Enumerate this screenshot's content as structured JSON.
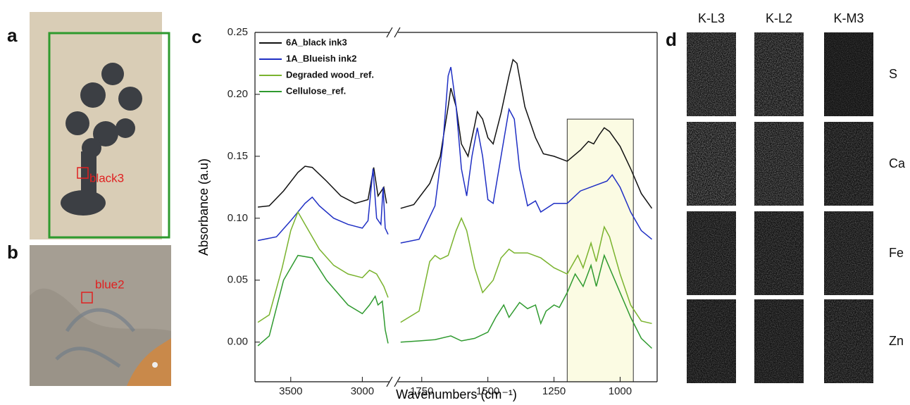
{
  "panels": {
    "a": "a",
    "b": "b",
    "c": "c",
    "d": "d"
  },
  "photo_a": {
    "roi": "black3"
  },
  "photo_b": {
    "roi": "blue2"
  },
  "maps": {
    "columns": [
      "K-L3",
      "K-L2",
      "K-M3"
    ],
    "rows": [
      "S",
      "Ca",
      "Fe",
      "Zn"
    ]
  },
  "chart_data": {
    "type": "line",
    "x_label": "Wavenumbers (cm⁻¹)",
    "y_label": "Absorbance (a.u)",
    "xlim": [
      [
        3750,
        2810
      ],
      [
        1840,
        860
      ]
    ],
    "xticks": [
      3500,
      3000,
      1750,
      1500,
      1250,
      1000
    ],
    "ylim": [
      -0.032,
      0.25
    ],
    "yticks": [
      {
        "value": 0,
        "label": "0.00"
      },
      {
        "value": 0.05,
        "label": "0.05"
      },
      {
        "value": 0.1,
        "label": "0.10"
      },
      {
        "value": 0.15,
        "label": "0.15"
      },
      {
        "value": 0.2,
        "label": "0.20"
      },
      {
        "value": 0.25,
        "label": "0.25"
      }
    ],
    "legend": "upper left",
    "highlight": {
      "x": [
        1200,
        950
      ],
      "y": [
        -0.032,
        0.18
      ],
      "color": "#fbfbe3"
    },
    "series": [
      {
        "name": "6A_black ink3",
        "color": "#111111",
        "x": [
          3730,
          3650,
          3550,
          3450,
          3400,
          3350,
          3250,
          3150,
          3050,
          2960,
          2920,
          2890,
          2850,
          2830,
          1830,
          1780,
          1720,
          1680,
          1650,
          1640,
          1620,
          1600,
          1575,
          1550,
          1540,
          1520,
          1500,
          1480,
          1450,
          1420,
          1405,
          1390,
          1360,
          1320,
          1290,
          1250,
          1200,
          1150,
          1120,
          1100,
          1080,
          1060,
          1040,
          1000,
          960,
          920,
          880
        ],
        "values": [
          0.109,
          0.11,
          0.122,
          0.137,
          0.142,
          0.141,
          0.13,
          0.118,
          0.112,
          0.115,
          0.141,
          0.118,
          0.125,
          0.112,
          0.108,
          0.111,
          0.128,
          0.15,
          0.19,
          0.205,
          0.19,
          0.16,
          0.15,
          0.175,
          0.186,
          0.18,
          0.165,
          0.16,
          0.185,
          0.215,
          0.228,
          0.225,
          0.19,
          0.165,
          0.152,
          0.15,
          0.146,
          0.155,
          0.162,
          0.16,
          0.167,
          0.173,
          0.17,
          0.158,
          0.14,
          0.12,
          0.108
        ]
      },
      {
        "name": "1A_Blueish ink2",
        "color": "#1f2fc4",
        "x": [
          3730,
          3600,
          3500,
          3400,
          3350,
          3300,
          3200,
          3100,
          3000,
          2960,
          2925,
          2900,
          2870,
          2855,
          2840,
          2820,
          1830,
          1760,
          1700,
          1670,
          1650,
          1640,
          1620,
          1600,
          1580,
          1560,
          1540,
          1520,
          1500,
          1480,
          1450,
          1420,
          1400,
          1380,
          1350,
          1320,
          1300,
          1250,
          1200,
          1150,
          1100,
          1050,
          1030,
          1000,
          960,
          920,
          880
        ],
        "values": [
          0.082,
          0.085,
          0.098,
          0.112,
          0.117,
          0.11,
          0.1,
          0.095,
          0.092,
          0.098,
          0.14,
          0.1,
          0.095,
          0.125,
          0.092,
          0.087,
          0.08,
          0.083,
          0.11,
          0.16,
          0.215,
          0.222,
          0.19,
          0.14,
          0.118,
          0.15,
          0.173,
          0.15,
          0.115,
          0.112,
          0.15,
          0.188,
          0.18,
          0.14,
          0.11,
          0.114,
          0.105,
          0.112,
          0.112,
          0.122,
          0.126,
          0.13,
          0.135,
          0.125,
          0.105,
          0.09,
          0.083
        ]
      },
      {
        "name": "Degraded wood_ref.",
        "color": "#7ab32e",
        "x": [
          3730,
          3650,
          3560,
          3500,
          3450,
          3400,
          3300,
          3200,
          3100,
          3000,
          2950,
          2900,
          2850,
          2820,
          1830,
          1760,
          1720,
          1700,
          1680,
          1650,
          1620,
          1600,
          1580,
          1550,
          1520,
          1500,
          1480,
          1450,
          1420,
          1400,
          1350,
          1300,
          1250,
          1200,
          1160,
          1140,
          1110,
          1090,
          1060,
          1040,
          1000,
          960,
          920,
          880
        ],
        "values": [
          0.016,
          0.022,
          0.06,
          0.09,
          0.105,
          0.095,
          0.075,
          0.062,
          0.055,
          0.052,
          0.058,
          0.055,
          0.045,
          0.036,
          0.016,
          0.025,
          0.065,
          0.07,
          0.067,
          0.07,
          0.09,
          0.1,
          0.09,
          0.06,
          0.04,
          0.045,
          0.05,
          0.068,
          0.075,
          0.072,
          0.072,
          0.068,
          0.06,
          0.055,
          0.07,
          0.06,
          0.08,
          0.065,
          0.093,
          0.085,
          0.055,
          0.03,
          0.017,
          0.015
        ]
      },
      {
        "name": "Cellulose_ref.",
        "color": "#2f9a2f",
        "x": [
          3730,
          3650,
          3550,
          3450,
          3350,
          3250,
          3100,
          3000,
          2950,
          2910,
          2890,
          2860,
          2840,
          2820,
          1830,
          1760,
          1700,
          1640,
          1600,
          1550,
          1500,
          1470,
          1440,
          1420,
          1380,
          1350,
          1320,
          1300,
          1280,
          1250,
          1230,
          1200,
          1170,
          1140,
          1110,
          1090,
          1060,
          1040,
          1000,
          960,
          920,
          880
        ],
        "values": [
          -0.003,
          0.005,
          0.05,
          0.07,
          0.068,
          0.05,
          0.03,
          0.023,
          0.03,
          0.037,
          0.03,
          0.033,
          0.01,
          -0.001,
          0.0,
          0.001,
          0.002,
          0.005,
          0.001,
          0.003,
          0.008,
          0.02,
          0.03,
          0.02,
          0.032,
          0.027,
          0.03,
          0.015,
          0.025,
          0.03,
          0.028,
          0.04,
          0.055,
          0.045,
          0.062,
          0.045,
          0.07,
          0.06,
          0.04,
          0.02,
          0.003,
          -0.005
        ]
      }
    ]
  }
}
